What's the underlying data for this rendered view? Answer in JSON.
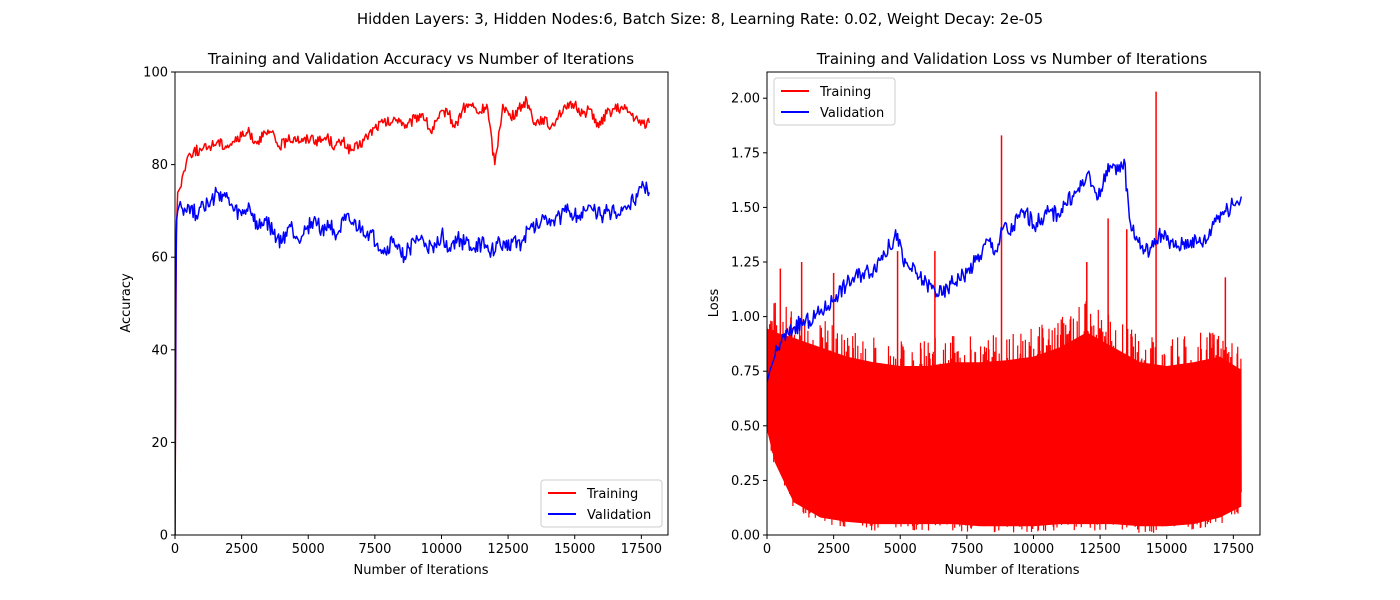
{
  "suptitle": "Hidden Layers: 3, Hidden Nodes:6, Batch Size: 8, Learning Rate: 0.02, Weight Decay: 2e-05",
  "colors": {
    "training": "#ff0000",
    "validation": "#0000ff"
  },
  "chart_data": [
    {
      "type": "line",
      "title": "Training and Validation Accuracy vs Number of Iterations",
      "xlabel": "Number of Iterations",
      "ylabel": "Accuracy",
      "xlim": [
        0,
        18500
      ],
      "ylim": [
        0,
        100
      ],
      "xticks": [
        0,
        2500,
        5000,
        7500,
        10000,
        12500,
        15000,
        17500
      ],
      "xtick_labels": [
        "0",
        "2500",
        "5000",
        "7500",
        "10000",
        "12500",
        "15000",
        "17500"
      ],
      "yticks": [
        0,
        20,
        40,
        60,
        80,
        100
      ],
      "ytick_labels": [
        "0",
        "20",
        "40",
        "60",
        "80",
        "100"
      ],
      "legend_position": "lower-right",
      "series": [
        {
          "name": "Training",
          "color": "#ff0000",
          "x": [
            0,
            50,
            100,
            200,
            300,
            500,
            700,
            1000,
            1300,
            1600,
            1900,
            2200,
            2500,
            2800,
            3000,
            3300,
            3600,
            3900,
            4200,
            4500,
            4800,
            5100,
            5400,
            5700,
            6000,
            6300,
            6600,
            6900,
            7200,
            7500,
            7800,
            8100,
            8400,
            8700,
            9000,
            9300,
            9600,
            9900,
            10200,
            10500,
            10800,
            11100,
            11400,
            11700,
            12000,
            12300,
            12600,
            12900,
            13200,
            13500,
            13800,
            14100,
            14400,
            14700,
            15000,
            15300,
            15600,
            15900,
            16200,
            16500,
            16800,
            17100,
            17400,
            17800
          ],
          "y": [
            0,
            65,
            74,
            75,
            78,
            82,
            83,
            83,
            84,
            85,
            84,
            85,
            86,
            87,
            85,
            86,
            87,
            84,
            85,
            86,
            85,
            86,
            85,
            86,
            84,
            85,
            83,
            84,
            86,
            88,
            89,
            89,
            90,
            88,
            90,
            91,
            87,
            90,
            92,
            88,
            92,
            93,
            91,
            93,
            80,
            93,
            90,
            92,
            94,
            89,
            90,
            88,
            91,
            92,
            93,
            91,
            92,
            88,
            91,
            92,
            92,
            91,
            89,
            89
          ]
        },
        {
          "name": "Validation",
          "color": "#0000ff",
          "x": [
            0,
            30,
            60,
            100,
            200,
            400,
            600,
            800,
            1000,
            1300,
            1600,
            1900,
            2200,
            2500,
            2800,
            3100,
            3400,
            3700,
            4000,
            4300,
            4600,
            4900,
            5200,
            5500,
            5800,
            6100,
            6400,
            6700,
            7000,
            7300,
            7600,
            7900,
            8200,
            8500,
            8800,
            9100,
            9400,
            9700,
            10000,
            10300,
            10600,
            10900,
            11200,
            11500,
            11800,
            12100,
            12400,
            12700,
            13000,
            13300,
            13600,
            13900,
            14200,
            14500,
            14800,
            15100,
            15400,
            15700,
            16000,
            16300,
            16600,
            16900,
            17200,
            17500,
            17800
          ],
          "y": [
            0,
            52,
            68,
            70,
            72,
            70,
            71,
            69,
            72,
            71,
            74,
            73,
            70,
            69,
            71,
            66,
            68,
            65,
            63,
            67,
            64,
            66,
            68,
            66,
            67,
            65,
            68,
            67,
            66,
            65,
            63,
            61,
            64,
            60,
            62,
            64,
            63,
            61,
            65,
            62,
            64,
            63,
            62,
            63,
            61,
            63,
            62,
            64,
            63,
            66,
            67,
            69,
            68,
            69,
            70,
            69,
            70,
            70,
            69,
            70,
            69,
            71,
            72,
            75,
            74
          ]
        }
      ]
    },
    {
      "type": "line",
      "title": "Training and Validation Loss vs Number of Iterations",
      "xlabel": "Number of Iterations",
      "ylabel": "Loss",
      "xlim": [
        0,
        18500
      ],
      "ylim": [
        0,
        2.12
      ],
      "xticks": [
        0,
        2500,
        5000,
        7500,
        10000,
        12500,
        15000,
        17500
      ],
      "xtick_labels": [
        "0",
        "2500",
        "5000",
        "7500",
        "10000",
        "12500",
        "15000",
        "17500"
      ],
      "yticks": [
        0,
        0.25,
        0.5,
        0.75,
        1.0,
        1.25,
        1.5,
        1.75,
        2.0
      ],
      "ytick_labels": [
        "0.00",
        "0.25",
        "0.50",
        "0.75",
        "1.00",
        "1.25",
        "1.50",
        "1.75",
        "2.00"
      ],
      "legend_position": "upper-left",
      "series": [
        {
          "name": "Training",
          "color": "#ff0000",
          "band": {
            "x": [
              0,
              300,
              1000,
              2000,
              3000,
              4000,
              5000,
              6000,
              7000,
              8000,
              9000,
              10000,
              11000,
              12000,
              13000,
              14000,
              15000,
              16000,
              17000,
              17800
            ],
            "y_high": [
              1.1,
              1.08,
              1.05,
              1.0,
              0.95,
              0.92,
              0.9,
              0.9,
              0.92,
              0.92,
              0.93,
              0.95,
              1.0,
              1.08,
              1.0,
              0.92,
              0.9,
              0.92,
              0.95,
              0.88
            ],
            "y_low": [
              0.45,
              0.3,
              0.12,
              0.05,
              0.03,
              0.02,
              0.02,
              0.02,
              0.02,
              0.01,
              0.01,
              0.01,
              0.02,
              0.02,
              0.02,
              0.01,
              0.01,
              0.02,
              0.05,
              0.1
            ]
          },
          "spikes": [
            {
              "x": 500,
              "y": 1.22
            },
            {
              "x": 1300,
              "y": 1.25
            },
            {
              "x": 2500,
              "y": 1.2
            },
            {
              "x": 4900,
              "y": 1.3
            },
            {
              "x": 6300,
              "y": 1.3
            },
            {
              "x": 8800,
              "y": 1.83
            },
            {
              "x": 12000,
              "y": 1.25
            },
            {
              "x": 12800,
              "y": 1.45
            },
            {
              "x": 13500,
              "y": 1.4
            },
            {
              "x": 14600,
              "y": 2.03
            },
            {
              "x": 17200,
              "y": 1.18
            }
          ]
        },
        {
          "name": "Validation",
          "color": "#0000ff",
          "x": [
            0,
            100,
            300,
            500,
            800,
            1000,
            1300,
            1600,
            2000,
            2300,
            2600,
            3000,
            3300,
            3600,
            4000,
            4300,
            4600,
            4900,
            5100,
            5400,
            5700,
            6000,
            6300,
            6600,
            6900,
            7200,
            7500,
            7800,
            8000,
            8300,
            8600,
            8900,
            9100,
            9400,
            9700,
            10000,
            10300,
            10600,
            10900,
            11200,
            11500,
            11800,
            12000,
            12200,
            12500,
            12800,
            13100,
            13400,
            13600,
            13900,
            14200,
            14500,
            14700,
            15000,
            15300,
            15600,
            15900,
            16200,
            16500,
            16800,
            17100,
            17400,
            17600,
            17800
          ],
          "y": [
            0.7,
            0.75,
            0.82,
            0.88,
            0.92,
            0.95,
            0.97,
            0.98,
            1.02,
            1.05,
            1.1,
            1.15,
            1.18,
            1.2,
            1.22,
            1.28,
            1.32,
            1.38,
            1.25,
            1.22,
            1.18,
            1.15,
            1.12,
            1.1,
            1.15,
            1.18,
            1.2,
            1.25,
            1.28,
            1.35,
            1.3,
            1.42,
            1.38,
            1.45,
            1.48,
            1.42,
            1.45,
            1.48,
            1.47,
            1.52,
            1.55,
            1.6,
            1.65,
            1.6,
            1.55,
            1.7,
            1.65,
            1.72,
            1.45,
            1.35,
            1.3,
            1.32,
            1.38,
            1.35,
            1.32,
            1.33,
            1.35,
            1.34,
            1.35,
            1.45,
            1.48,
            1.5,
            1.52,
            1.55
          ]
        }
      ]
    }
  ]
}
